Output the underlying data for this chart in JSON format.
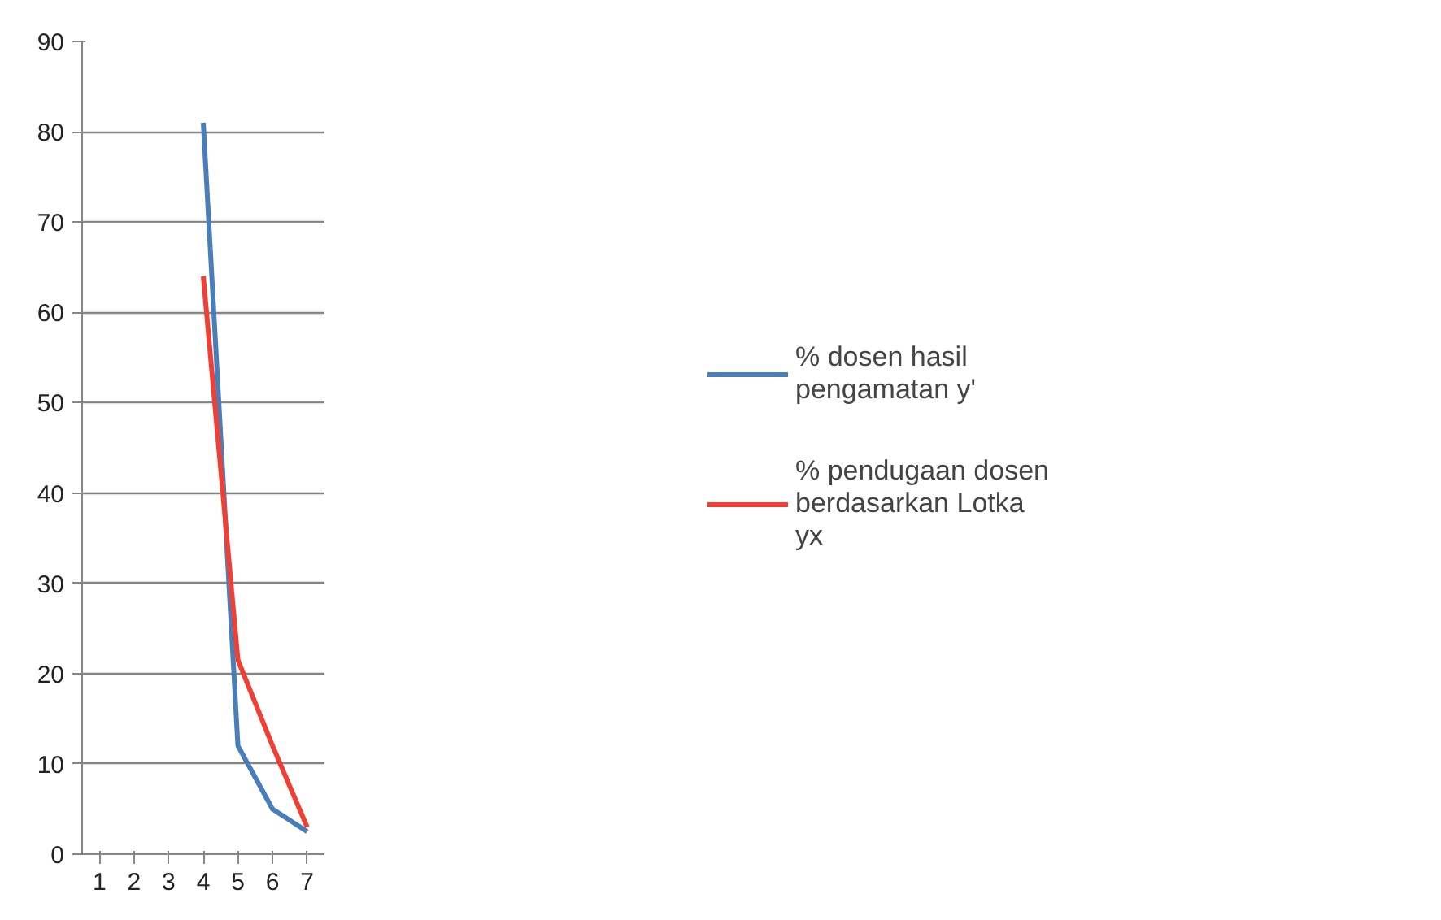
{
  "chart_data": {
    "type": "line",
    "categories": [
      "1",
      "2",
      "3",
      "4",
      "5",
      "6",
      "7"
    ],
    "series": [
      {
        "name": "% dosen hasil pengamatan y'",
        "color": "#4a7ebb",
        "values": [
          null,
          null,
          null,
          81,
          12,
          5,
          2.5
        ]
      },
      {
        "name": "% pendugaan dosen berdasarkan Lotka yx",
        "color": "#ee4035",
        "values": [
          null,
          null,
          null,
          64,
          21.5,
          12,
          3
        ]
      }
    ],
    "ylim": [
      0,
      90
    ],
    "yticks": [
      0,
      10,
      20,
      30,
      40,
      50,
      60,
      70,
      80,
      90
    ],
    "grid": "y",
    "legend": "right",
    "marker": "none",
    "line_style": "solid"
  }
}
